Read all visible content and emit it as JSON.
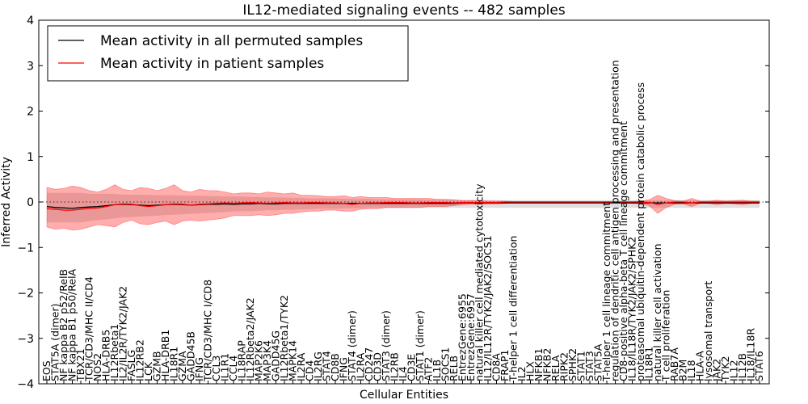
{
  "chart_data": {
    "type": "line",
    "title": "IL12-mediated signaling events -- 482 samples",
    "xlabel": "Cellular Entities",
    "ylabel": "Inferred Activity",
    "ylim": [
      -4,
      4
    ],
    "yticks": [
      -4,
      -3,
      -2,
      -1,
      0,
      1,
      2,
      3,
      4
    ],
    "ytick_labels": [
      "−4",
      "−3",
      "−2",
      "−1",
      "0",
      "1",
      "2",
      "3",
      "4"
    ],
    "grid": false,
    "legend_position": "top-left",
    "legend": [
      {
        "label": "Mean activity in all permuted samples",
        "color": "#000000"
      },
      {
        "label": "Mean activity in patient samples",
        "color": "#ff0000"
      }
    ],
    "categories": [
      "EOS",
      "STAT5A (dimer)",
      "NF kappa B2 p52/RelB",
      "NF kappa B1 p50/RelA",
      "TBX21",
      "TCR/CD3/MHC II/CD4",
      "NOS2",
      "HLA-DRB5",
      "IL12Rbeta1",
      "IL2/IL2R/TYK2/JAK2",
      "FASLG",
      "IL12RB2",
      "LCK",
      "GZMB",
      "HLA-DRB1",
      "IL18R1",
      "GZMA",
      "GADD45B",
      "IFNG",
      "TCR/CD3/MHC I/CD8",
      "CCL3",
      "IL1R1",
      "CCL4",
      "IL18RAP",
      "IL12Rbeta2/JAK2",
      "MAP2K6",
      "MAP3K4",
      "GADD45G",
      "IL12Rbeta1/TYK2",
      "MAPK14",
      "IL2RA",
      "CD4",
      "IL2RG",
      "STAT4",
      "CD8B",
      "IFNG",
      "STAT4 (dimer)",
      "IL2RA",
      "CD247",
      "CD3D",
      "STAT3 (dimer)",
      "IL2RB",
      "IL4",
      "CD3E",
      "STAT1 (dimer)",
      "ATF2",
      "IL1B",
      "SOCS1",
      "RELB",
      "EntrezGene:6955",
      "EntrezGene:6957",
      "natural killer cell mediated cytotoxicity",
      "IL12/IL12R/TYK2/JAK2/SOCS1",
      "CD8A",
      "FRAP1",
      "T-helper 1 cell differentiation",
      "IL2",
      "HLX",
      "NFKB1",
      "NFKB2",
      "RELA",
      "RIPK2",
      "SPHK2",
      "STAT1",
      "STAT3",
      "STAT5A",
      "T-helper 1 cell lineage commitment",
      "regulation of dendritic cell antigen processing and presentation",
      "CD8-positive alpha-beta T cell lineage commitment",
      "IL18/IL18R/TYK2/JAK2/SPHK2",
      "proteasomal ubiquitin-dependent protein catabolic process",
      "IL18R1",
      "natural killer cell activation",
      "T cell proliferation",
      "RAB7A",
      "B2M",
      "IL18",
      "HLA-A",
      "lysosomal transport",
      "JAK2",
      "TYK2",
      "IL12",
      "IL12B",
      "IL18/IL18R",
      "STAT6"
    ],
    "series": [
      {
        "name": "Mean activity in all permuted samples",
        "color": "#000000",
        "values": [
          -0.1,
          -0.12,
          -0.13,
          -0.14,
          -0.12,
          -0.11,
          -0.1,
          -0.08,
          -0.06,
          -0.05,
          -0.06,
          -0.07,
          -0.08,
          -0.07,
          -0.06,
          -0.05,
          -0.06,
          -0.07,
          -0.06,
          -0.05,
          -0.05,
          -0.04,
          -0.05,
          -0.04,
          -0.04,
          -0.03,
          -0.04,
          -0.04,
          -0.03,
          -0.03,
          -0.03,
          -0.03,
          -0.03,
          -0.03,
          -0.03,
          -0.03,
          -0.03,
          -0.03,
          -0.03,
          -0.03,
          -0.03,
          -0.03,
          -0.03,
          -0.03,
          -0.03,
          -0.03,
          -0.03,
          -0.03,
          -0.03,
          -0.02,
          -0.02,
          -0.02,
          -0.02,
          -0.02,
          -0.02,
          -0.02,
          -0.02,
          -0.02,
          -0.02,
          -0.02,
          -0.02,
          -0.02,
          -0.02,
          -0.02,
          -0.02,
          -0.02,
          -0.02,
          -0.02,
          -0.02,
          -0.02,
          -0.02,
          -0.02,
          -0.02,
          -0.02,
          -0.02,
          -0.02,
          -0.02,
          -0.02,
          -0.02,
          -0.02,
          -0.02,
          -0.02,
          -0.02,
          -0.02,
          -0.02
        ]
      },
      {
        "name": "Mean activity in patient samples",
        "color": "#ff0000",
        "values": [
          -0.15,
          -0.16,
          -0.18,
          -0.18,
          -0.16,
          -0.14,
          -0.13,
          -0.1,
          -0.06,
          -0.04,
          -0.05,
          -0.08,
          -0.1,
          -0.08,
          -0.06,
          -0.04,
          -0.05,
          -0.07,
          -0.05,
          -0.04,
          -0.03,
          -0.02,
          -0.03,
          -0.02,
          -0.01,
          -0.02,
          -0.03,
          -0.02,
          -0.01,
          -0.02,
          -0.02,
          -0.01,
          -0.01,
          -0.02,
          -0.02,
          -0.03,
          -0.05,
          -0.03,
          -0.02,
          -0.02,
          -0.01,
          -0.01,
          -0.01,
          -0.02,
          -0.02,
          -0.01,
          -0.01,
          -0.01,
          -0.02,
          -0.01,
          -0.01,
          -0.01,
          -0.01,
          -0.01,
          0.0,
          0.0,
          0.0,
          0.0,
          0.0,
          0.0,
          0.0,
          0.0,
          0.0,
          0.0,
          0.0,
          0.0,
          0.0,
          0.0,
          0.0,
          0.0,
          0.0,
          -0.01,
          -0.05,
          -0.02,
          0.0,
          0.0,
          -0.02,
          0.0,
          0.0,
          0.0,
          0.0,
          0.0,
          0.0,
          0.0,
          0.0
        ]
      }
    ],
    "patient_band": {
      "upper": [
        0.32,
        0.28,
        0.3,
        0.35,
        0.32,
        0.25,
        0.22,
        0.28,
        0.38,
        0.28,
        0.25,
        0.32,
        0.3,
        0.25,
        0.3,
        0.38,
        0.25,
        0.22,
        0.28,
        0.25,
        0.25,
        0.22,
        0.18,
        0.2,
        0.2,
        0.18,
        0.22,
        0.2,
        0.18,
        0.2,
        0.15,
        0.15,
        0.14,
        0.12,
        0.12,
        0.14,
        0.1,
        0.12,
        0.1,
        0.1,
        0.1,
        0.08,
        0.08,
        0.08,
        0.08,
        0.08,
        0.06,
        0.06,
        0.05,
        0.03,
        0.03,
        0.03,
        0.02,
        0.02,
        0.02,
        0.01,
        0.01,
        0.01,
        0.01,
        0.01,
        0.01,
        0.01,
        0.01,
        0.01,
        0.01,
        0.01,
        0.01,
        0.01,
        0.01,
        0.01,
        0.02,
        0.05,
        0.15,
        0.08,
        0.03,
        0.02,
        0.08,
        0.02,
        0.02,
        0.04,
        0.02,
        0.03,
        0.04,
        0.02,
        0.02
      ],
      "lower": [
        -0.55,
        -0.6,
        -0.58,
        -0.62,
        -0.6,
        -0.55,
        -0.5,
        -0.52,
        -0.55,
        -0.45,
        -0.4,
        -0.48,
        -0.5,
        -0.45,
        -0.42,
        -0.5,
        -0.42,
        -0.4,
        -0.42,
        -0.4,
        -0.38,
        -0.35,
        -0.3,
        -0.3,
        -0.3,
        -0.28,
        -0.3,
        -0.28,
        -0.25,
        -0.25,
        -0.22,
        -0.2,
        -0.2,
        -0.18,
        -0.18,
        -0.2,
        -0.2,
        -0.16,
        -0.15,
        -0.15,
        -0.12,
        -0.12,
        -0.12,
        -0.12,
        -0.12,
        -0.1,
        -0.1,
        -0.1,
        -0.08,
        -0.06,
        -0.05,
        -0.05,
        -0.04,
        -0.04,
        -0.03,
        -0.02,
        -0.02,
        -0.02,
        -0.02,
        -0.02,
        -0.02,
        -0.02,
        -0.02,
        -0.02,
        -0.02,
        -0.02,
        -0.02,
        -0.02,
        -0.02,
        -0.03,
        -0.04,
        -0.08,
        -0.25,
        -0.12,
        -0.05,
        -0.04,
        -0.1,
        -0.03,
        -0.03,
        -0.06,
        -0.03,
        -0.04,
        -0.06,
        -0.03,
        -0.03
      ]
    },
    "permuted_band": {
      "upper": [
        0.2,
        0.2,
        0.2,
        0.2,
        0.2,
        0.18,
        0.18,
        0.18,
        0.18,
        0.16,
        0.16,
        0.16,
        0.16,
        0.15,
        0.15,
        0.15,
        0.14,
        0.14,
        0.14,
        0.13,
        0.13,
        0.12,
        0.12,
        0.12,
        0.11,
        0.11,
        0.1,
        0.1,
        0.1,
        0.09,
        0.09,
        0.08,
        0.08,
        0.08,
        0.08,
        0.07,
        0.07,
        0.07,
        0.07,
        0.06,
        0.06,
        0.06,
        0.06,
        0.06,
        0.06,
        0.05,
        0.05,
        0.05,
        0.05,
        0.05,
        0.05,
        0.05,
        0.05,
        0.04,
        0.04,
        0.04,
        0.04,
        0.04,
        0.04,
        0.04,
        0.04,
        0.04,
        0.04,
        0.04,
        0.04,
        0.04,
        0.04,
        0.04,
        0.04,
        0.04,
        0.04,
        0.04,
        0.04,
        0.04,
        0.04,
        0.04,
        0.04,
        0.04,
        0.04,
        0.04,
        0.04,
        0.04,
        0.04,
        0.04,
        0.04
      ],
      "lower": [
        -0.45,
        -0.45,
        -0.45,
        -0.45,
        -0.45,
        -0.42,
        -0.4,
        -0.38,
        -0.36,
        -0.34,
        -0.33,
        -0.32,
        -0.31,
        -0.3,
        -0.29,
        -0.28,
        -0.27,
        -0.26,
        -0.25,
        -0.24,
        -0.23,
        -0.22,
        -0.21,
        -0.2,
        -0.2,
        -0.19,
        -0.18,
        -0.18,
        -0.17,
        -0.17,
        -0.16,
        -0.16,
        -0.15,
        -0.15,
        -0.15,
        -0.14,
        -0.14,
        -0.14,
        -0.13,
        -0.13,
        -0.13,
        -0.13,
        -0.13,
        -0.13,
        -0.13,
        -0.13,
        -0.13,
        -0.13,
        -0.13,
        -0.13,
        -0.13,
        -0.13,
        -0.13,
        -0.13,
        -0.13,
        -0.13,
        -0.13,
        -0.13,
        -0.13,
        -0.13,
        -0.13,
        -0.13,
        -0.13,
        -0.13,
        -0.13,
        -0.13,
        -0.13,
        -0.13,
        -0.13,
        -0.13,
        -0.13,
        -0.13,
        -0.13,
        -0.13,
        -0.13,
        -0.13,
        -0.13,
        -0.13,
        -0.13,
        -0.13,
        -0.13,
        -0.13,
        -0.13,
        -0.13,
        -0.13
      ]
    }
  }
}
